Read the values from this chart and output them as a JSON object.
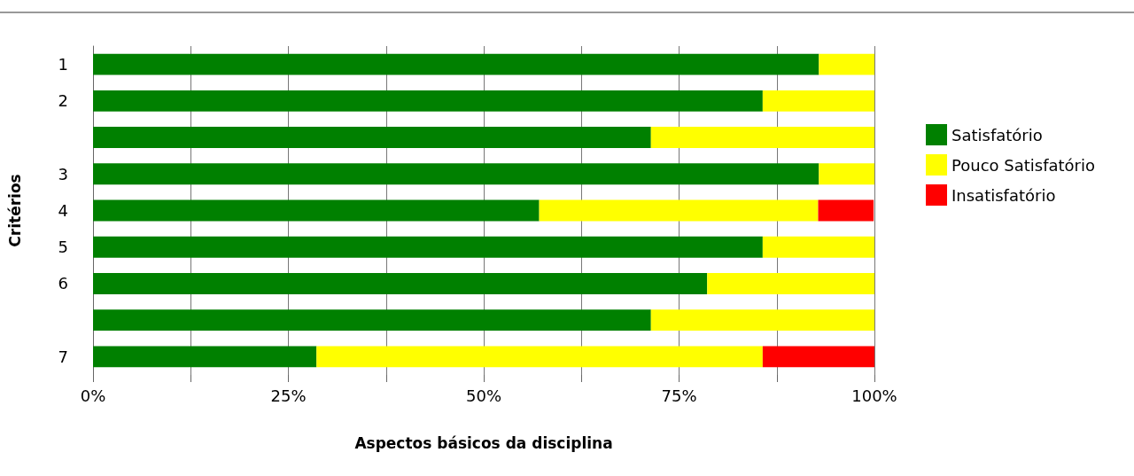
{
  "chart_data": {
    "type": "bar",
    "orientation": "horizontal",
    "stacked": true,
    "xlabel": "Aspectos básicos da disciplina",
    "ylabel": "Critérios",
    "categories": [
      "1",
      "2",
      null,
      "3",
      "4",
      "5",
      "6",
      null,
      "7"
    ],
    "series": [
      {
        "name": "Satisfatório",
        "color": "#008000",
        "values": [
          92.9,
          85.7,
          71.4,
          92.9,
          57.1,
          85.7,
          78.6,
          71.4,
          28.6
        ]
      },
      {
        "name": "Pouco Satisfatório",
        "color": "#ffff00",
        "values": [
          7.1,
          14.3,
          28.6,
          7.1,
          35.7,
          14.3,
          21.4,
          28.6,
          57.1
        ]
      },
      {
        "name": "Insatisfatório",
        "color": "#ff0000",
        "values": [
          0,
          0,
          0,
          0,
          7.1,
          0,
          0,
          0,
          14.3
        ]
      }
    ],
    "xlim": [
      0,
      100
    ],
    "xticks": [
      {
        "value": 0,
        "label": "0%"
      },
      {
        "value": 12.5,
        "label": null
      },
      {
        "value": 25,
        "label": "25%"
      },
      {
        "value": 37.5,
        "label": null
      },
      {
        "value": 50,
        "label": "50%"
      },
      {
        "value": 62.5,
        "label": null
      },
      {
        "value": 75,
        "label": "75%"
      },
      {
        "value": 87.5,
        "label": null
      },
      {
        "value": 100,
        "label": "100%"
      }
    ],
    "grid": "x",
    "legend": "right"
  }
}
